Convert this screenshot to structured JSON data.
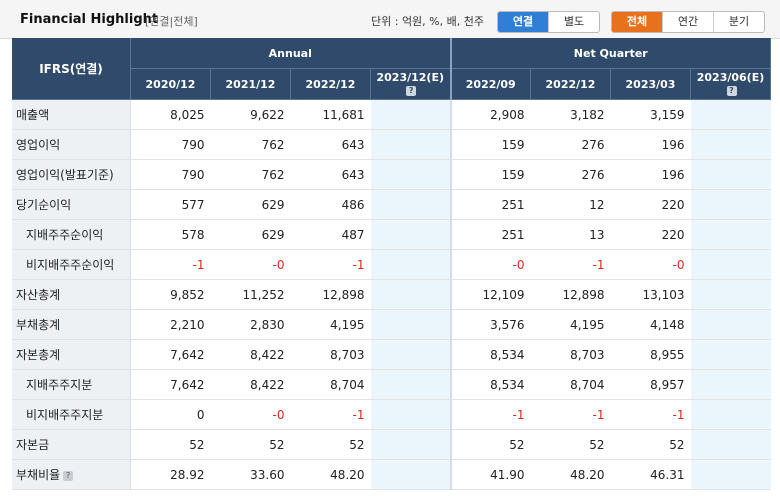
{
  "header": {
    "title": "Financial Highlight",
    "subtitle": "[연결|전체]",
    "unit_label": "단위 : 억원, %, 배, 천주",
    "consolidation_tabs": [
      "연결",
      "별도"
    ],
    "period_tabs": [
      "전체",
      "연간",
      "분기"
    ]
  },
  "table": {
    "left_header": "IFRS(연결)",
    "group_annual": "Annual",
    "group_quarter": "Net Quarter",
    "annual_cols": [
      "2020/12",
      "2021/12",
      "2022/12",
      "2023/12(E)"
    ],
    "quarter_cols": [
      "2022/09",
      "2022/12",
      "2023/03",
      "2023/06(E)"
    ],
    "help_glyph": "?",
    "rows": [
      {
        "label": "매출액",
        "v": [
          "8,025",
          "9,622",
          "11,681",
          "",
          "2,908",
          "3,182",
          "3,159",
          ""
        ]
      },
      {
        "label": "영업이익",
        "v": [
          "790",
          "762",
          "643",
          "",
          "159",
          "276",
          "196",
          ""
        ]
      },
      {
        "label": "영업이익(발표기준)",
        "v": [
          "790",
          "762",
          "643",
          "",
          "159",
          "276",
          "196",
          ""
        ]
      },
      {
        "label": "당기순이익",
        "v": [
          "577",
          "629",
          "486",
          "",
          "251",
          "12",
          "220",
          ""
        ]
      },
      {
        "label": "지배주주순이익",
        "v": [
          "578",
          "629",
          "487",
          "",
          "251",
          "13",
          "220",
          ""
        ]
      },
      {
        "label": "비지배주주순이익",
        "v": [
          "-1",
          "-0",
          "-1",
          "",
          "-0",
          "-1",
          "-0",
          ""
        ]
      },
      {
        "label": "자산총계",
        "v": [
          "9,852",
          "11,252",
          "12,898",
          "",
          "12,109",
          "12,898",
          "13,103",
          ""
        ]
      },
      {
        "label": "부채총계",
        "v": [
          "2,210",
          "2,830",
          "4,195",
          "",
          "3,576",
          "4,195",
          "4,148",
          ""
        ]
      },
      {
        "label": "자본총계",
        "v": [
          "7,642",
          "8,422",
          "8,703",
          "",
          "8,534",
          "8,703",
          "8,955",
          ""
        ]
      },
      {
        "label": "지배주주지분",
        "v": [
          "7,642",
          "8,422",
          "8,704",
          "",
          "8,534",
          "8,704",
          "8,957",
          ""
        ]
      },
      {
        "label": "비지배주주지분",
        "v": [
          "0",
          "-0",
          "-1",
          "",
          "-1",
          "-1",
          "-1",
          ""
        ]
      },
      {
        "label": "자본금",
        "v": [
          "52",
          "52",
          "52",
          "",
          "52",
          "52",
          "52",
          ""
        ]
      },
      {
        "label": "부채비율",
        "v": [
          "28.92",
          "33.60",
          "48.20",
          "",
          "41.90",
          "48.20",
          "46.31",
          ""
        ]
      }
    ]
  }
}
